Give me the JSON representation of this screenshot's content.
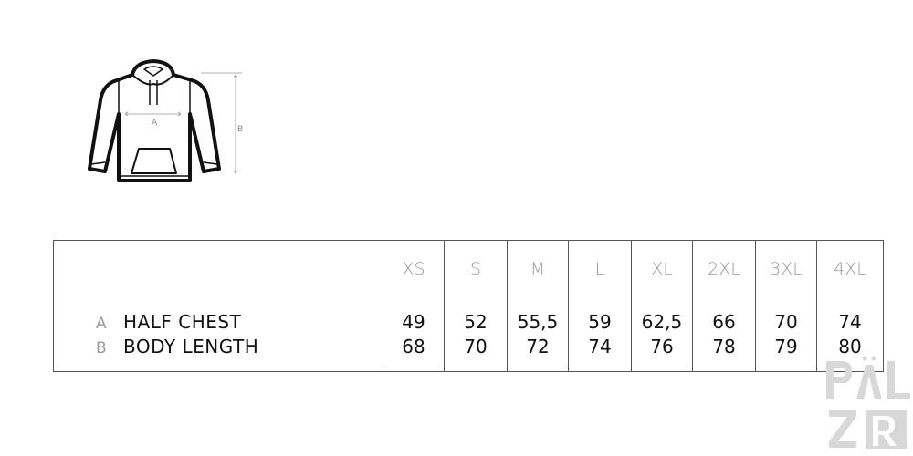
{
  "diagram": {
    "label_a": "A",
    "label_b": "B"
  },
  "table": {
    "sizes": [
      "XS",
      "S",
      "M",
      "L",
      "XL",
      "2XL",
      "3XL",
      "4XL"
    ],
    "rows": [
      {
        "letter": "A",
        "label": "HALF CHEST",
        "values": [
          "49",
          "52",
          "55,5",
          "59",
          "62,5",
          "66",
          "70",
          "74"
        ]
      },
      {
        "letter": "B",
        "label": "BODY LENGTH",
        "values": [
          "68",
          "70",
          "72",
          "74",
          "76",
          "78",
          "79",
          "80"
        ]
      }
    ]
  },
  "watermark": {
    "text": "PÄL ZR"
  }
}
